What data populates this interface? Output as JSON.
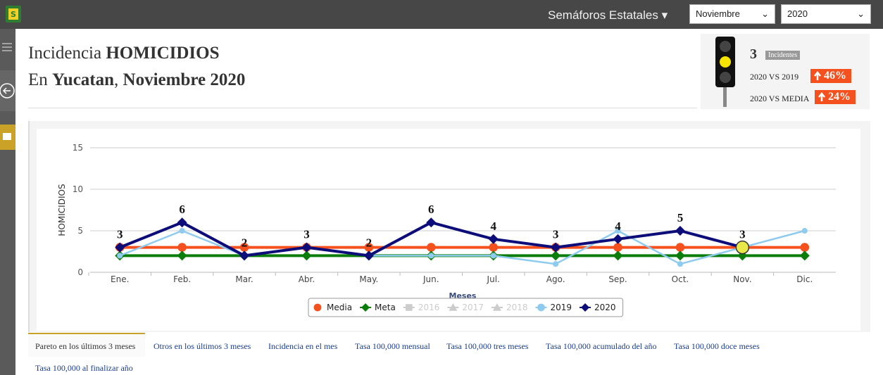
{
  "header": {
    "menu": "Semáforos Estatales",
    "month": "Noviembre",
    "year": "2020"
  },
  "title": {
    "line1": [
      "Incidencia",
      "HOMICIDIOS"
    ],
    "line2": [
      "En",
      "Yucatan",
      ",",
      "Noviembre 2020"
    ]
  },
  "semaforo": {
    "count": "3",
    "count_label": "Incidentes",
    "vs_prev_label": "2020 VS 2019",
    "vs_prev": "46%",
    "vs_media_label": "2020 VS MEDIA",
    "vs_media": "24%"
  },
  "chart_data": {
    "type": "line",
    "y_label": "HOMICIDIOS",
    "x_label": "Meses",
    "categories": [
      "Ene.",
      "Feb.",
      "Mar.",
      "Abr.",
      "May.",
      "Jun.",
      "Jul.",
      "Ago.",
      "Sep.",
      "Oct.",
      "Nov.",
      "Dic."
    ],
    "ylim": [
      0,
      15
    ],
    "yticks": [
      0,
      5,
      10,
      15
    ],
    "grid": true,
    "highlight_index": 10,
    "series": [
      {
        "name": "Media",
        "color": "#f4511e",
        "marker": "circle",
        "values": [
          3,
          3,
          3,
          3,
          3,
          3,
          3,
          3,
          3,
          3,
          3,
          3
        ]
      },
      {
        "name": "Meta",
        "color": "#0a7d0a",
        "marker": "diamond",
        "values": [
          2,
          2,
          2,
          2,
          2,
          2,
          2,
          2,
          2,
          2,
          2,
          2
        ]
      },
      {
        "name": "2016",
        "color": "#cccccc",
        "marker": "square",
        "hidden": true,
        "values": [
          null,
          null,
          null,
          null,
          null,
          null,
          null,
          null,
          null,
          null,
          null,
          null
        ]
      },
      {
        "name": "2017",
        "color": "#cccccc",
        "marker": "triangle",
        "hidden": true,
        "values": [
          null,
          null,
          null,
          null,
          null,
          null,
          null,
          null,
          null,
          null,
          null,
          null
        ]
      },
      {
        "name": "2018",
        "color": "#cccccc",
        "marker": "triangle",
        "hidden": true,
        "values": [
          null,
          null,
          null,
          null,
          null,
          null,
          null,
          null,
          null,
          null,
          null,
          null
        ]
      },
      {
        "name": "2019",
        "color": "#8ecbef",
        "marker": "circle",
        "values": [
          2,
          5,
          2,
          3,
          2,
          2,
          2,
          1,
          5,
          1,
          3,
          5
        ]
      },
      {
        "name": "2020",
        "color": "#0d0d7a",
        "marker": "diamond",
        "data_labels": true,
        "values": [
          3,
          6,
          2,
          3,
          2,
          6,
          4,
          3,
          4,
          5,
          3,
          null
        ]
      }
    ]
  },
  "tabs": [
    "Pareto en los últimos 3 meses",
    "Otros en los últimos 3 meses",
    "Incidencia en el mes",
    "Tasa 100,000 mensual",
    "Tasa 100,000 tres meses",
    "Tasa 100,000 acumulado del año",
    "Tasa 100,000 doce meses",
    "Tasa 100,000 al finalizar año"
  ]
}
